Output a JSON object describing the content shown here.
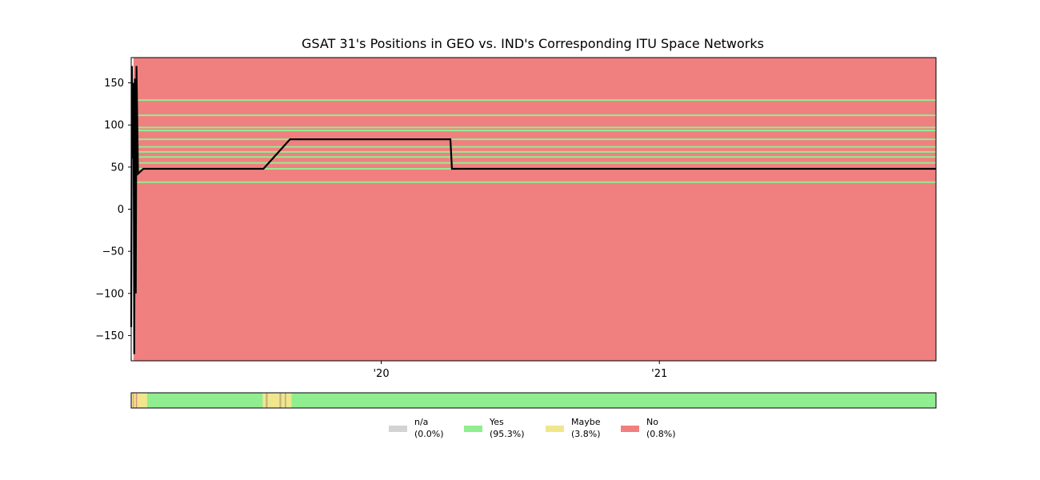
{
  "chart_data": {
    "type": "line",
    "title": "GSAT 31's Positions in GEO vs. IND's Corresponding ITU Space Networks",
    "xlabel": "",
    "ylabel": "",
    "x_range": [
      "2019-02-06",
      "2021-12-31"
    ],
    "ylim": [
      -180,
      180
    ],
    "y_ticks": [
      150,
      100,
      50,
      0,
      -50,
      -100,
      -150
    ],
    "y_tick_labels": [
      "150",
      "100",
      "50",
      "0",
      "−50",
      "−100",
      "−150"
    ],
    "x_ticks": [
      {
        "date": "2020-01-01",
        "label": "'20"
      },
      {
        "date": "2021-01-01",
        "label": "'21"
      }
    ],
    "grid": false,
    "background_band": {
      "color": "#f08080",
      "from": "2019-02-09",
      "to": "2021-12-31"
    },
    "itu_network_longitudes": [
      129.5,
      111.5,
      97,
      93.5,
      83,
      74,
      68,
      62,
      55,
      48,
      32
    ],
    "itu_line_color": "#90ee90",
    "position_series": {
      "name": "",
      "color": "#000000",
      "points": [
        [
          "2019-02-06",
          -140
        ],
        [
          "2019-02-07",
          170
        ],
        [
          "2019-02-08",
          60
        ],
        [
          "2019-02-09",
          150
        ],
        [
          "2019-02-10",
          -172
        ],
        [
          "2019-02-11",
          155
        ],
        [
          "2019-02-12",
          -100
        ],
        [
          "2019-02-13",
          170
        ],
        [
          "2019-02-15",
          42
        ],
        [
          "2019-02-22",
          48
        ],
        [
          "2019-07-30",
          48
        ],
        [
          "2019-09-03",
          83
        ],
        [
          "2020-04-01",
          83
        ],
        [
          "2020-04-03",
          48
        ],
        [
          "2021-12-31",
          48
        ]
      ]
    },
    "status_strip": {
      "default": "Yes",
      "segments": [
        {
          "from": "2019-02-06",
          "to": "2019-02-12",
          "status": "Maybe"
        },
        {
          "from": "2019-02-14",
          "to": "2019-02-27",
          "status": "Maybe"
        },
        {
          "from": "2019-07-29",
          "to": "2019-08-02",
          "status": "Maybe"
        },
        {
          "from": "2019-08-05",
          "to": "2019-08-20",
          "status": "Maybe"
        },
        {
          "from": "2019-08-23",
          "to": "2019-08-27",
          "status": "Maybe"
        },
        {
          "from": "2019-08-29",
          "to": "2019-09-05",
          "status": "Maybe"
        }
      ],
      "dividers": [
        "2019-02-09",
        "2019-02-13",
        "2019-08-03",
        "2019-08-21",
        "2019-08-28"
      ]
    },
    "legend": {
      "placement": "bottom-center",
      "entries": [
        {
          "key": "n/a",
          "label": "n/a",
          "pct": "(0.0%)",
          "color": "#d3d3d3"
        },
        {
          "key": "Yes",
          "label": "Yes",
          "pct": "(95.3%)",
          "color": "#90ee90"
        },
        {
          "key": "Maybe",
          "label": "Maybe",
          "pct": "(3.8%)",
          "color": "#f0e68c"
        },
        {
          "key": "No",
          "label": "No",
          "pct": "(0.8%)",
          "color": "#f08080"
        }
      ]
    }
  }
}
